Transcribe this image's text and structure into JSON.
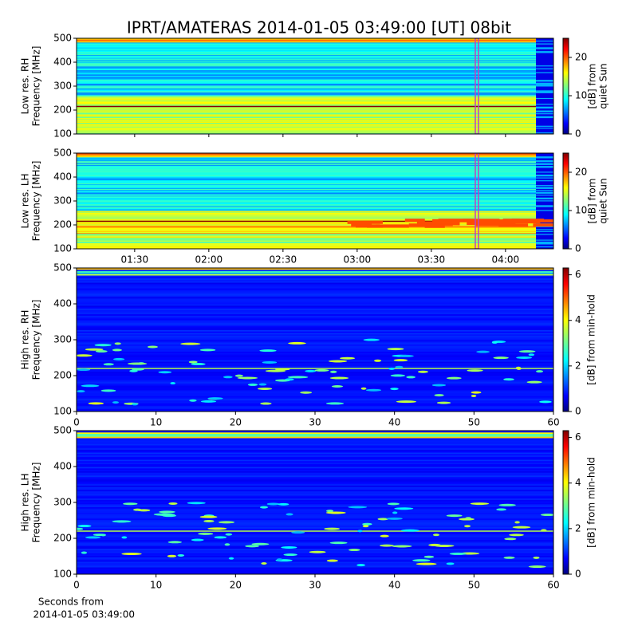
{
  "chart_data": [
    {
      "type": "spectrogram",
      "title": "IPRT/AMATERAS 2014-01-05 03:49:00 [UT]   08bit",
      "ylabel": [
        "Low res. RH",
        "Frequency [MHz]"
      ],
      "ylim": [
        100,
        500
      ],
      "yticks": [
        100,
        200,
        300,
        400,
        500
      ],
      "xlim": [
        66.5,
        259.4
      ],
      "xticks": [
        90,
        120,
        150,
        180,
        210,
        240
      ],
      "clim": [
        0,
        25
      ],
      "cticks": [
        0,
        10,
        20
      ],
      "clabel": [
        "[dB] from",
        "quiet Sun"
      ],
      "colormap": "jet"
    },
    {
      "type": "spectrogram",
      "ylabel": [
        "Low res. LH",
        "Frequency [MHz]"
      ],
      "ylim": [
        100,
        500
      ],
      "yticks": [
        100,
        200,
        300,
        400,
        500
      ],
      "xlim": [
        66.5,
        259.4
      ],
      "xticks": [
        {
          "value": 90,
          "label": "01:30"
        },
        {
          "value": 120,
          "label": "02:00"
        },
        {
          "value": 150,
          "label": "02:30"
        },
        {
          "value": 180,
          "label": "03:00"
        },
        {
          "value": 210,
          "label": "03:30"
        },
        {
          "value": 240,
          "label": "04:00"
        }
      ],
      "clim": [
        0,
        25
      ],
      "cticks": [
        0,
        10,
        20
      ],
      "clabel": [
        "[dB] from",
        "quiet Sun"
      ],
      "colormap": "jet"
    },
    {
      "type": "spectrogram",
      "ylabel": [
        "High res. RH",
        "Frequency [MHz]"
      ],
      "ylim": [
        100,
        500
      ],
      "yticks": [
        100,
        200,
        300,
        400,
        500
      ],
      "xlim": [
        0,
        60
      ],
      "xticks": [
        0,
        10,
        20,
        30,
        40,
        50,
        60
      ],
      "clim": [
        0,
        6.3
      ],
      "cticks": [
        0,
        2,
        4,
        6
      ],
      "clabel": [
        "[dB] from min-hold"
      ],
      "colormap": "jet"
    },
    {
      "type": "spectrogram",
      "ylabel": [
        "High res. LH",
        "Frequency [MHz]"
      ],
      "ylim": [
        100,
        500
      ],
      "yticks": [
        100,
        200,
        300,
        400,
        500
      ],
      "xlim": [
        0,
        60
      ],
      "xticks": [
        0,
        10,
        20,
        30,
        40,
        50,
        60
      ],
      "clim": [
        0,
        6.3
      ],
      "cticks": [
        0,
        2,
        4,
        6
      ],
      "clabel": [
        "[dB] from min-hold"
      ],
      "colormap": "jet",
      "xlabel": [
        "Seconds from",
        "2014-01-05 03:49:00"
      ]
    }
  ]
}
